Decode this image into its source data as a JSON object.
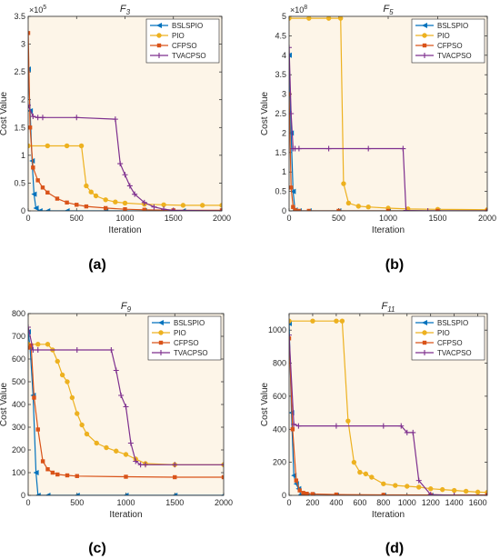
{
  "panel_labels": [
    "(a)",
    "(b)",
    "(c)",
    "(d)"
  ],
  "colors": {
    "plot_background": "#fdf5e8",
    "BSLSPIO": "#0072bd",
    "PIO": "#edb120",
    "CFPSO": "#d95319",
    "TVACPSO": "#7e2f8e"
  },
  "chart_data": [
    {
      "type": "line",
      "title": "F3",
      "xlabel": "Iteration",
      "ylabel": "Cost Value",
      "xlim": [
        0,
        2000
      ],
      "ylim": [
        0,
        3.5
      ],
      "y_exponent_label": "×10^5",
      "x_ticks": [
        0,
        500,
        1000,
        1500,
        2000
      ],
      "y_ticks": [
        0,
        0.5,
        1,
        1.5,
        2,
        2.5,
        3,
        3.5
      ],
      "legend_position": "top-right",
      "grid": false,
      "series": [
        {
          "name": "BSLSPIO",
          "marker": "triangle-left",
          "x": [
            0,
            20,
            40,
            60,
            80,
            120,
            200,
            400,
            800,
            1200,
            1600,
            2000
          ],
          "y": [
            2.55,
            1.8,
            0.9,
            0.3,
            0.05,
            0,
            0,
            0,
            0,
            0,
            0,
            0
          ]
        },
        {
          "name": "PIO",
          "marker": "circle",
          "x": [
            0,
            200,
            400,
            550,
            600,
            650,
            700,
            800,
            900,
            1000,
            1200,
            1400,
            1600,
            1800,
            2000
          ],
          "y": [
            1.17,
            1.17,
            1.17,
            1.17,
            0.45,
            0.34,
            0.27,
            0.2,
            0.16,
            0.14,
            0.12,
            0.11,
            0.1,
            0.1,
            0.1
          ]
        },
        {
          "name": "CFPSO",
          "marker": "square",
          "x": [
            0,
            20,
            50,
            100,
            150,
            200,
            300,
            400,
            500,
            600,
            800,
            1000,
            1200,
            1500,
            2000
          ],
          "y": [
            3.2,
            1.5,
            0.78,
            0.55,
            0.42,
            0.33,
            0.22,
            0.15,
            0.11,
            0.08,
            0.05,
            0.03,
            0.02,
            0.01,
            0.01
          ]
        },
        {
          "name": "TVACPSO",
          "marker": "plus",
          "x": [
            0,
            50,
            100,
            150,
            500,
            900,
            950,
            1000,
            1050,
            1100,
            1200,
            1300,
            1400,
            1500,
            2000
          ],
          "y": [
            1.9,
            1.7,
            1.68,
            1.68,
            1.68,
            1.65,
            0.85,
            0.65,
            0.45,
            0.3,
            0.15,
            0.07,
            0.03,
            0.01,
            0
          ]
        }
      ]
    },
    {
      "type": "line",
      "title": "F5",
      "xlabel": "Iteration",
      "ylabel": "Cost Value",
      "xlim": [
        0,
        2000
      ],
      "ylim": [
        0,
        5
      ],
      "y_exponent_label": "×10^8",
      "x_ticks": [
        0,
        500,
        1000,
        1500,
        2000
      ],
      "y_ticks": [
        0,
        0.5,
        1,
        1.5,
        2,
        2.5,
        3,
        3.5,
        4,
        4.5,
        5
      ],
      "legend_position": "top-right",
      "grid": false,
      "series": [
        {
          "name": "BSLSPIO",
          "marker": "triangle-left",
          "x": [
            0,
            20,
            40,
            60,
            100,
            200,
            500,
            1000,
            1500,
            2000
          ],
          "y": [
            4.0,
            2.0,
            0.5,
            0.02,
            0,
            0,
            0,
            0,
            0,
            0
          ]
        },
        {
          "name": "PIO",
          "marker": "circle",
          "x": [
            0,
            200,
            400,
            520,
            550,
            600,
            700,
            800,
            1000,
            1200,
            1500,
            2000
          ],
          "y": [
            4.95,
            4.95,
            4.95,
            4.95,
            0.7,
            0.2,
            0.12,
            0.1,
            0.07,
            0.05,
            0.04,
            0.03
          ]
        },
        {
          "name": "CFPSO",
          "marker": "square",
          "x": [
            0,
            20,
            40,
            60,
            100,
            200,
            500,
            1000,
            1500,
            2000
          ],
          "y": [
            3.0,
            0.6,
            0.1,
            0.02,
            0,
            0,
            0,
            0,
            0,
            0
          ]
        },
        {
          "name": "TVACPSO",
          "marker": "plus",
          "x": [
            0,
            20,
            40,
            60,
            100,
            400,
            800,
            1150,
            1180,
            1400,
            2000
          ],
          "y": [
            4.2,
            2.5,
            1.6,
            1.6,
            1.6,
            1.6,
            1.6,
            1.6,
            0.01,
            0,
            0
          ]
        }
      ]
    },
    {
      "type": "line",
      "title": "F9",
      "xlabel": "Iteration",
      "ylabel": "Cost Value",
      "xlim": [
        0,
        2000
      ],
      "ylim": [
        0,
        800
      ],
      "x_ticks": [
        0,
        500,
        1000,
        1500,
        2000
      ],
      "y_ticks": [
        0,
        100,
        200,
        300,
        400,
        500,
        600,
        700,
        800
      ],
      "legend_position": "top-right",
      "grid": false,
      "series": [
        {
          "name": "BSLSPIO",
          "marker": "triangle-left",
          "x": [
            0,
            20,
            50,
            80,
            100,
            200,
            500,
            1000,
            1500,
            2000
          ],
          "y": [
            720,
            650,
            440,
            100,
            0,
            0,
            0,
            0,
            0,
            0
          ]
        },
        {
          "name": "PIO",
          "marker": "circle",
          "x": [
            0,
            100,
            200,
            250,
            300,
            350,
            400,
            450,
            500,
            550,
            600,
            700,
            800,
            900,
            1000,
            1100,
            1200,
            1500,
            2000
          ],
          "y": [
            665,
            665,
            665,
            640,
            590,
            530,
            500,
            430,
            360,
            310,
            270,
            230,
            210,
            195,
            180,
            160,
            140,
            135,
            135
          ]
        },
        {
          "name": "CFPSO",
          "marker": "square",
          "x": [
            0,
            30,
            60,
            100,
            150,
            200,
            250,
            300,
            400,
            500,
            1000,
            1500,
            2000
          ],
          "y": [
            650,
            660,
            430,
            290,
            150,
            115,
            100,
            92,
            88,
            85,
            82,
            80,
            80
          ]
        },
        {
          "name": "TVACPSO",
          "marker": "plus",
          "x": [
            0,
            50,
            100,
            500,
            850,
            900,
            950,
            1000,
            1050,
            1100,
            1150,
            1200,
            1500,
            2000
          ],
          "y": [
            740,
            640,
            640,
            640,
            640,
            550,
            440,
            390,
            230,
            150,
            135,
            135,
            135,
            135
          ]
        }
      ]
    },
    {
      "type": "line",
      "title": "F11",
      "xlabel": "Iteration",
      "ylabel": "Cost Value",
      "xlim": [
        0,
        1680
      ],
      "ylim": [
        0,
        1100
      ],
      "x_ticks": [
        0,
        200,
        400,
        600,
        800,
        1000,
        1200,
        1400,
        1600
      ],
      "y_ticks": [
        0,
        200,
        400,
        600,
        800,
        1000
      ],
      "legend_position": "top-right",
      "grid": false,
      "series": [
        {
          "name": "BSLSPIO",
          "marker": "triangle-left",
          "x": [
            0,
            20,
            40,
            60,
            80,
            100,
            150,
            200,
            400,
            800,
            1200,
            1680
          ],
          "y": [
            1040,
            500,
            120,
            70,
            40,
            5,
            0,
            0,
            0,
            0,
            0,
            0
          ]
        },
        {
          "name": "PIO",
          "marker": "circle",
          "x": [
            0,
            200,
            400,
            450,
            500,
            550,
            600,
            650,
            700,
            800,
            900,
            1000,
            1100,
            1200,
            1300,
            1400,
            1500,
            1600,
            1680
          ],
          "y": [
            1055,
            1055,
            1055,
            1055,
            450,
            200,
            140,
            130,
            110,
            70,
            60,
            55,
            50,
            40,
            35,
            30,
            25,
            20,
            18
          ]
        },
        {
          "name": "CFPSO",
          "marker": "square",
          "x": [
            0,
            30,
            60,
            90,
            120,
            150,
            200,
            400,
            800,
            1200,
            1680
          ],
          "y": [
            950,
            400,
            90,
            30,
            15,
            10,
            8,
            5,
            3,
            2,
            2
          ]
        },
        {
          "name": "TVACPSO",
          "marker": "plus",
          "x": [
            0,
            40,
            80,
            400,
            800,
            950,
            1000,
            1050,
            1100,
            1200,
            1400,
            1680
          ],
          "y": [
            970,
            430,
            420,
            420,
            420,
            420,
            380,
            380,
            90,
            5,
            0,
            0
          ]
        }
      ]
    }
  ]
}
